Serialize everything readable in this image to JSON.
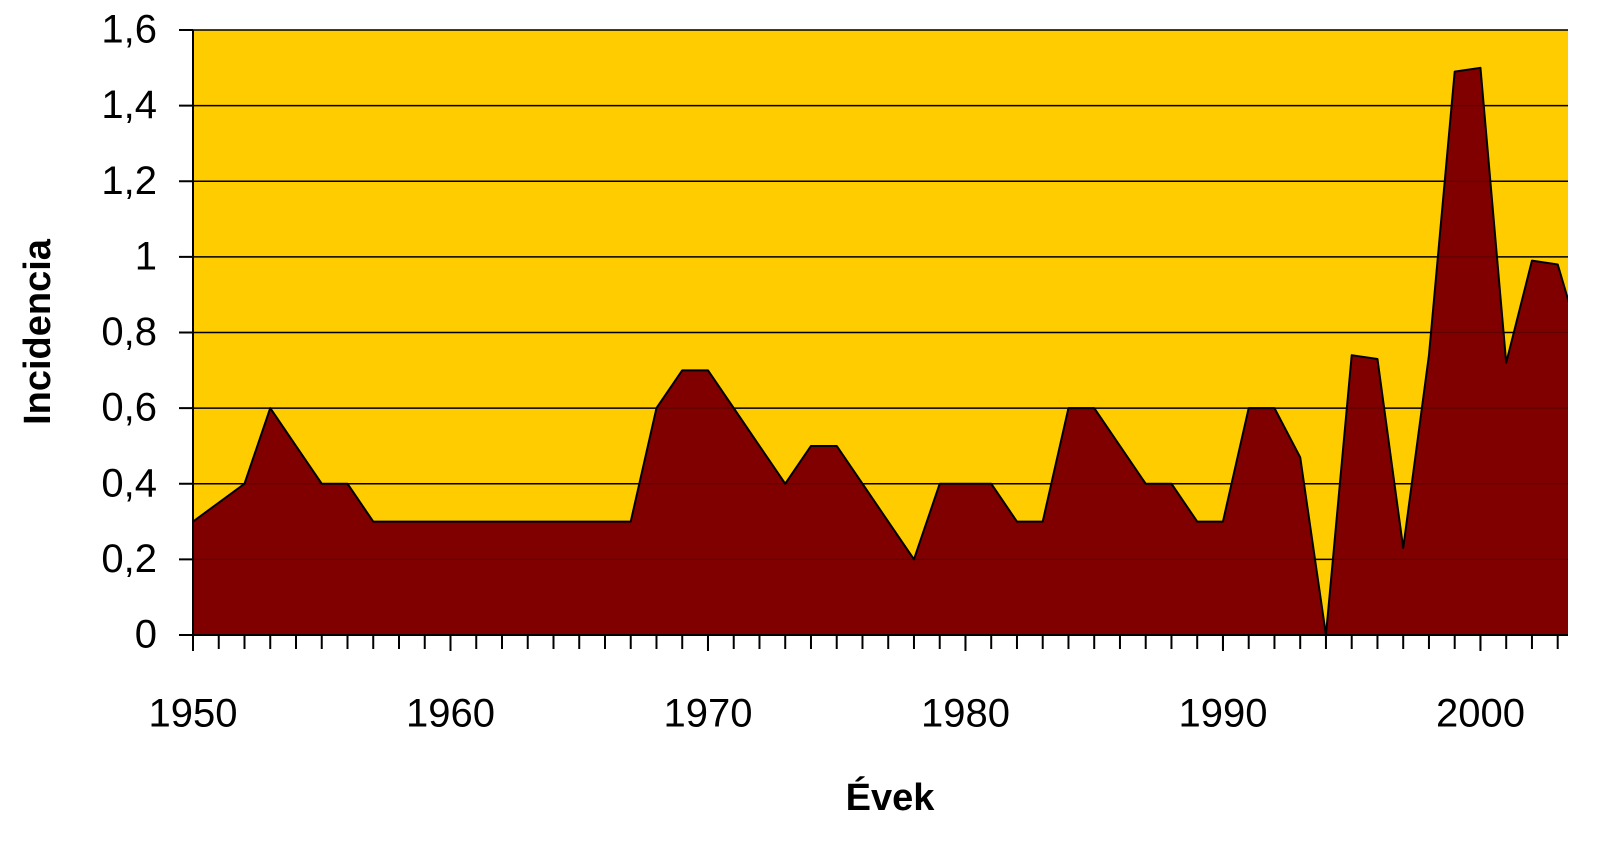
{
  "chart_data": {
    "type": "area",
    "x_label": "Évek",
    "y_label": "Incidencia",
    "x": [
      1950,
      1951,
      1952,
      1953,
      1954,
      1955,
      1956,
      1957,
      1958,
      1959,
      1960,
      1961,
      1962,
      1963,
      1964,
      1965,
      1966,
      1967,
      1968,
      1969,
      1970,
      1971,
      1972,
      1973,
      1974,
      1975,
      1976,
      1977,
      1978,
      1979,
      1980,
      1981,
      1982,
      1983,
      1984,
      1985,
      1986,
      1987,
      1988,
      1989,
      1990,
      1991,
      1992,
      1993,
      1994,
      1995,
      1996,
      1997,
      1998,
      1999,
      2000,
      2001,
      2002,
      2003,
      2004
    ],
    "series": [
      {
        "color": "#800000",
        "values": [
          0.3,
          0.35,
          0.4,
          0.6,
          0.5,
          0.4,
          0.4,
          0.3,
          0.3,
          0.3,
          0.3,
          0.3,
          0.3,
          0.3,
          0.3,
          0.3,
          0.3,
          0.3,
          0.6,
          0.7,
          0.7,
          0.6,
          0.5,
          0.4,
          0.5,
          0.5,
          0.4,
          0.3,
          0.2,
          0.4,
          0.4,
          0.4,
          0.3,
          0.3,
          0.6,
          0.6,
          0.5,
          0.4,
          0.4,
          0.3,
          0.3,
          0.6,
          0.6,
          0.47,
          0,
          0.74,
          0.73,
          0.23,
          0.74,
          1.49,
          1.5,
          0.72,
          0.99,
          0.98,
          0.75
        ]
      }
    ],
    "xlim": [
      1950,
      2003.4
    ],
    "xticks": [
      1950,
      1960,
      1970,
      1980,
      1990,
      2000
    ],
    "ylim": [
      0,
      1.6
    ],
    "yticks": [
      0,
      {
        "value": 0.2,
        "label": "0,2"
      },
      {
        "value": 0.4,
        "label": "0,4"
      },
      {
        "value": 0.6,
        "label": "0,6"
      },
      {
        "value": 0.8,
        "label": "0,8"
      },
      1,
      {
        "value": 1.2,
        "label": "1,2"
      },
      {
        "value": 1.4,
        "label": "1,4"
      },
      {
        "value": 1.6,
        "label": "1,6"
      }
    ],
    "background": "#ffcc00",
    "grid": true
  }
}
